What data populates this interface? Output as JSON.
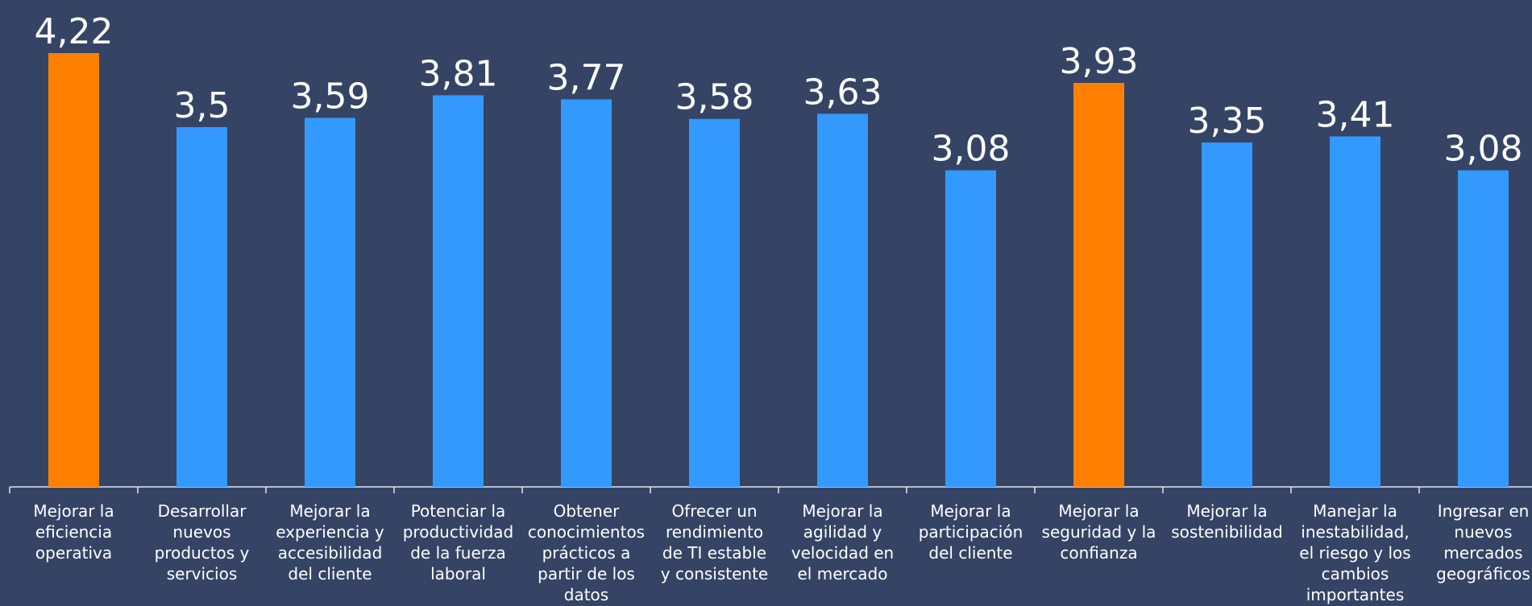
{
  "chart_data": {
    "type": "bar",
    "categories": [
      "Mejorar la\neficiencia\noperativa",
      "Desarrollar\nnuevos\nproductos y\nservicios",
      "Mejorar la\nexperiencia y\naccesibilidad\ndel cliente",
      "Potenciar la\nproductividad\nde la fuerza\nlaboral",
      "Obtener\nconocimientos\nprácticos a\npartir de los\ndatos",
      "Ofrecer un\nrendimiento\nde TI estable\ny consistente",
      "Mejorar la\nagilidad y\nvelocidad en\nel mercado",
      "Mejorar la\nparticipación\ndel cliente",
      "Mejorar la\nseguridad y la\nconfianza",
      "Mejorar la\nsostenibilidad",
      "Manejar la\ninestabilidad,\nel riesgo y los\ncambios\nimportantes",
      "Ingresar en\nnuevos\nmercados\ngeográficos"
    ],
    "values": [
      4.22,
      3.5,
      3.59,
      3.81,
      3.77,
      3.58,
      3.63,
      3.08,
      3.93,
      3.35,
      3.41,
      3.08
    ],
    "value_labels": [
      "4,22",
      "3,5",
      "3,59",
      "3,81",
      "3,77",
      "3,58",
      "3,63",
      "3,08",
      "3,93",
      "3,35",
      "3,41",
      "3,08"
    ],
    "highlighted": [
      true,
      false,
      false,
      false,
      false,
      false,
      false,
      false,
      true,
      false,
      false,
      false
    ],
    "ylim": [
      0,
      4.22
    ],
    "grid": false,
    "title": "",
    "xlabel": "",
    "ylabel": ""
  },
  "colors": {
    "background": "#354465",
    "bar": "#3399ff",
    "highlight": "#ff8000",
    "axis": "#dfe4ee",
    "text": "#ffffff"
  }
}
